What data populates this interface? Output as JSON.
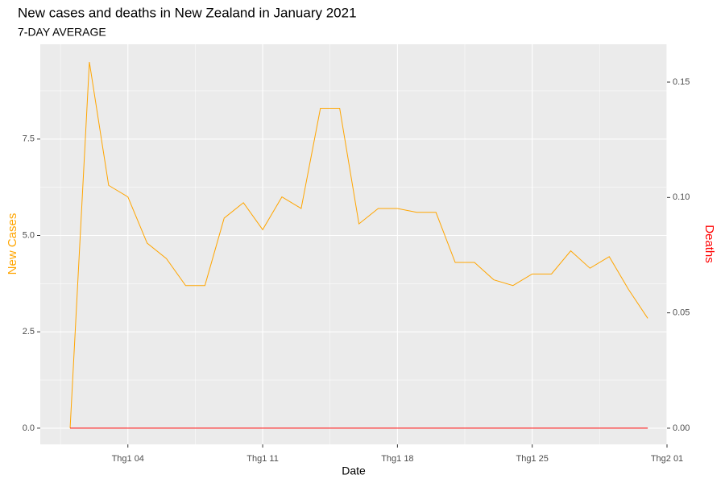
{
  "chart_data": {
    "type": "line",
    "title": "New cases and deaths in New Zealand in January 2021",
    "subtitle": "7-DAY AVERAGE",
    "x_label": "Date",
    "y_label": "New Cases",
    "y2_label": "Deaths",
    "x": [
      1,
      2,
      3,
      4,
      5,
      6,
      7,
      8,
      9,
      10,
      11,
      12,
      13,
      14,
      15,
      16,
      17,
      18,
      19,
      20,
      21,
      22,
      23,
      24,
      25,
      26,
      27,
      28,
      29,
      30,
      31
    ],
    "series": [
      {
        "name": "New Cases",
        "color": "#ffa500",
        "values": [
          0,
          9.5,
          6.3,
          6.0,
          4.8,
          4.4,
          3.7,
          3.7,
          5.45,
          5.85,
          5.15,
          6.0,
          5.7,
          8.3,
          8.3,
          5.3,
          5.7,
          5.7,
          5.6,
          5.6,
          4.3,
          4.3,
          3.85,
          3.7,
          4.0,
          4.0,
          4.6,
          4.15,
          4.45,
          3.6,
          2.85
        ]
      },
      {
        "name": "Deaths",
        "color": "#ff0000",
        "axis": "y2",
        "values": [
          0,
          0,
          0,
          0,
          0,
          0,
          0,
          0,
          0,
          0,
          0,
          0,
          0,
          0,
          0,
          0,
          0,
          0,
          0,
          0,
          0,
          0,
          0,
          0,
          0,
          0,
          0,
          0,
          0,
          0,
          0
        ]
      }
    ],
    "xlim": [
      -0.55,
      32
    ],
    "xticks": [
      {
        "value": 4,
        "label": "Thg1 04"
      },
      {
        "value": 11,
        "label": "Thg1 11"
      },
      {
        "value": 18,
        "label": "Thg1 18"
      },
      {
        "value": 25,
        "label": "Thg1 25"
      },
      {
        "value": 32,
        "label": "Thg2 01"
      }
    ],
    "ylim": [
      -0.42,
      9.96
    ],
    "yticks": [
      {
        "value": 0,
        "label": "0.0"
      },
      2.5,
      {
        "value": 5,
        "label": "5.0"
      },
      7.5
    ],
    "y2lim": [
      -0.007,
      0.1664
    ],
    "y2ticks": [
      {
        "value": 0,
        "label": "0.00"
      },
      0.05,
      {
        "value": 0.1,
        "label": "0.10"
      },
      0.15
    ],
    "grid": true
  }
}
